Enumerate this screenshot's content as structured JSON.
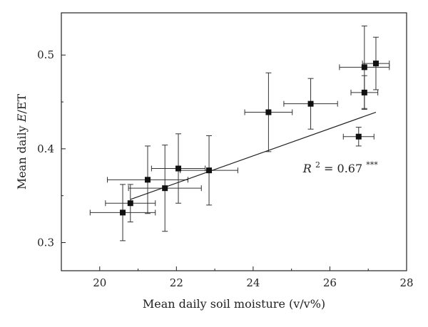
{
  "chart_data": {
    "type": "scatter",
    "xlabel": "Mean daily soil moisture (v/v%)",
    "ylabel_prefix": "Mean daily ",
    "ylabel_italic": "E",
    "ylabel_suffix": "/ET",
    "xlim": [
      19,
      28
    ],
    "ylim": [
      0.27,
      0.545
    ],
    "x_ticks": [
      20,
      22,
      24,
      26,
      28
    ],
    "y_ticks": [
      0.3,
      0.4,
      0.5
    ],
    "x_tick_labels": [
      "20",
      "22",
      "24",
      "26",
      "28"
    ],
    "y_tick_labels": [
      "0.3",
      "0.4",
      "0.5"
    ],
    "grid": false,
    "legend": "none",
    "points": [
      {
        "x": 20.6,
        "y": 0.332,
        "xerr": 0.85,
        "yerr": 0.03
      },
      {
        "x": 20.8,
        "y": 0.342,
        "xerr": 0.65,
        "yerr": 0.02
      },
      {
        "x": 21.25,
        "y": 0.367,
        "xerr": 1.05,
        "yerr": 0.036
      },
      {
        "x": 21.7,
        "y": 0.358,
        "xerr": 0.95,
        "yerr": 0.046
      },
      {
        "x": 22.05,
        "y": 0.379,
        "xerr": 0.7,
        "yerr": 0.037
      },
      {
        "x": 22.85,
        "y": 0.377,
        "xerr": 0.75,
        "yerr": 0.037
      },
      {
        "x": 24.4,
        "y": 0.439,
        "xerr": 0.62,
        "yerr": 0.042
      },
      {
        "x": 25.5,
        "y": 0.448,
        "xerr": 0.7,
        "yerr": 0.027
      },
      {
        "x": 26.75,
        "y": 0.413,
        "xerr": 0.4,
        "yerr": 0.01
      },
      {
        "x": 26.9,
        "y": 0.487,
        "xerr": 0.65,
        "yerr": 0.044
      },
      {
        "x": 26.9,
        "y": 0.46,
        "xerr": 0.35,
        "yerr": 0.018
      },
      {
        "x": 27.2,
        "y": 0.491,
        "xerr": 0.35,
        "yerr": 0.028
      }
    ],
    "fit_line": {
      "x": [
        20.8,
        27.2
      ],
      "y": [
        0.346,
        0.439
      ]
    },
    "annotation": {
      "r": "R",
      "sup": "2",
      "eq": " = 0.67",
      "stars": "***",
      "x": 25.3,
      "y": 0.375
    },
    "colors": {
      "marker": "#111111",
      "line": "#222222"
    }
  }
}
